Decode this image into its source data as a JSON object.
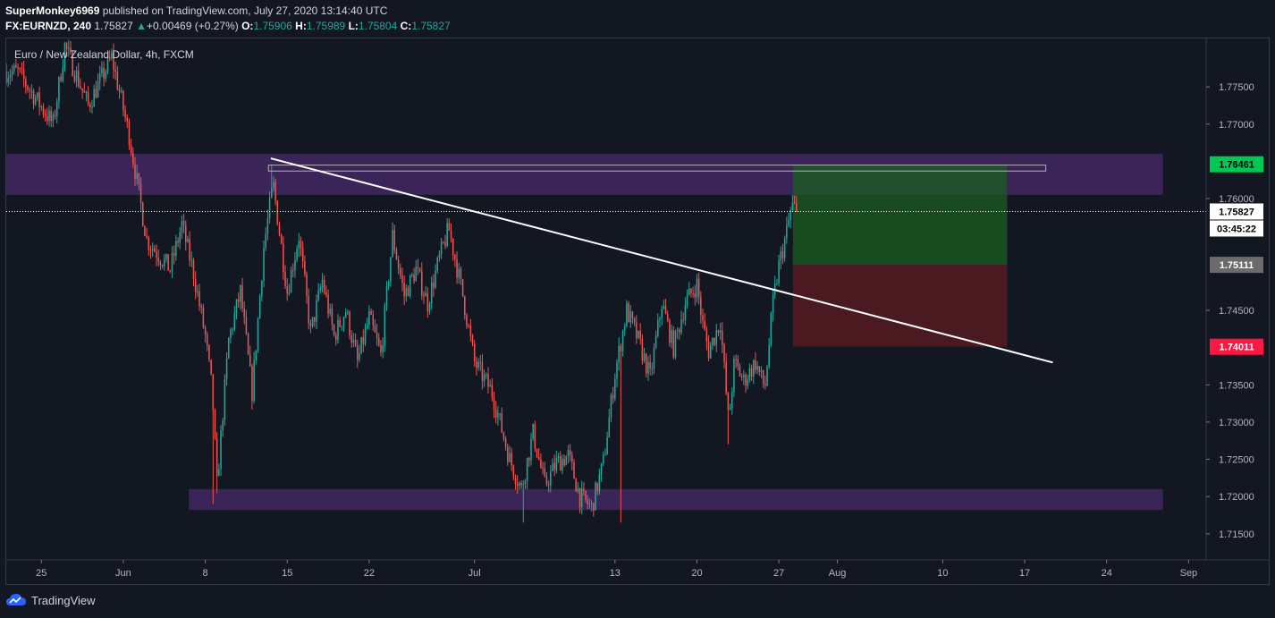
{
  "header": {
    "author": "SuperMonkey6969",
    "published_text": "published on TradingView.com, July 27, 2020 13:14:40 UTC",
    "symbol": "FX:EURNZD, 240",
    "last_price": "1.75827",
    "change_arrow": "▲",
    "change": "+0.00469 (+0.27%)",
    "o_label": "O:",
    "o_value": "1.75906",
    "h_label": "H:",
    "h_value": "1.75989",
    "l_label": "L:",
    "l_value": "1.75804",
    "c_label": "C:",
    "c_value": "1.75827"
  },
  "legend": {
    "title": "Euro / New Zealand Dollar, 4h, FXCM"
  },
  "branding": {
    "name": "TradingView"
  },
  "colors": {
    "background": "#131722",
    "up": "#26a69a",
    "down": "#ef5350",
    "zone": "#4a2a6b",
    "target_zone": "#1b5e20",
    "stop_zone": "#5a1a20",
    "trendline": "#ffffff",
    "tag_target": "#00c853",
    "tag_stop": "#ff1744",
    "tag_entry": "#6b6b6b"
  },
  "chart_data": {
    "type": "candlestick",
    "title": "Euro / New Zealand Dollar, 4h, FXCM",
    "y_ticks": [
      "1.77500",
      "1.77000",
      "1.76000",
      "1.74500",
      "1.73500",
      "1.73000",
      "1.72500",
      "1.72000",
      "1.71500"
    ],
    "y_tick_values": [
      1.775,
      1.77,
      1.76,
      1.745,
      1.735,
      1.73,
      1.725,
      1.72,
      1.715
    ],
    "ylim": [
      1.7115,
      1.7815
    ],
    "x_ticks": [
      "25",
      "Jun",
      "8",
      "15",
      "22",
      "Jul",
      "13",
      "20",
      "27",
      "Aug",
      "10",
      "17",
      "24",
      "Sep"
    ],
    "x_tick_days": [
      0,
      7,
      14,
      21,
      28,
      37,
      49,
      56,
      63,
      68,
      77,
      84,
      91,
      98
    ],
    "x_range_days": [
      -3,
      99.5
    ],
    "candles_per_day": 6,
    "price_path": [
      [
        -2,
        1.777
      ],
      [
        1,
        1.77
      ],
      [
        2,
        1.7805
      ],
      [
        4,
        1.7725
      ],
      [
        6,
        1.779
      ],
      [
        7.5,
        1.7685
      ],
      [
        9,
        1.7545
      ],
      [
        11,
        1.7505
      ],
      [
        12,
        1.7565
      ],
      [
        13,
        1.75
      ],
      [
        14,
        1.7415
      ],
      [
        14.6,
        1.734
      ],
      [
        15,
        1.7215
      ],
      [
        16,
        1.741
      ],
      [
        17,
        1.7475
      ],
      [
        18,
        1.734
      ],
      [
        19,
        1.7535
      ],
      [
        19.8,
        1.762
      ],
      [
        21,
        1.7475
      ],
      [
        22,
        1.755
      ],
      [
        23,
        1.742
      ],
      [
        24,
        1.749
      ],
      [
        25,
        1.7415
      ],
      [
        26,
        1.745
      ],
      [
        27,
        1.738
      ],
      [
        28,
        1.744
      ],
      [
        29,
        1.739
      ],
      [
        30,
        1.755
      ],
      [
        31,
        1.747
      ],
      [
        32,
        1.7505
      ],
      [
        33,
        1.746
      ],
      [
        34,
        1.752
      ],
      [
        34.8,
        1.756
      ],
      [
        36,
        1.747
      ],
      [
        37,
        1.738
      ],
      [
        38.5,
        1.734
      ],
      [
        40,
        1.725
      ],
      [
        41,
        1.721
      ],
      [
        42,
        1.7285
      ],
      [
        43,
        1.7215
      ],
      [
        44,
        1.7245
      ],
      [
        45,
        1.7255
      ],
      [
        46,
        1.72
      ],
      [
        47,
        1.7185
      ],
      [
        48,
        1.7245
      ],
      [
        49,
        1.7365
      ],
      [
        50,
        1.745
      ],
      [
        51,
        1.741
      ],
      [
        52,
        1.736
      ],
      [
        53,
        1.746
      ],
      [
        54,
        1.74
      ],
      [
        55,
        1.746
      ],
      [
        56,
        1.7485
      ],
      [
        56.5,
        1.743
      ],
      [
        57,
        1.7395
      ],
      [
        58,
        1.7435
      ],
      [
        58.7,
        1.73
      ],
      [
        59.2,
        1.738
      ],
      [
        60,
        1.7355
      ],
      [
        61,
        1.738
      ],
      [
        61.8,
        1.7345
      ],
      [
        62.5,
        1.746
      ],
      [
        63,
        1.751
      ],
      [
        63.6,
        1.755
      ],
      [
        64.1,
        1.759
      ],
      [
        64.6,
        1.7583
      ]
    ],
    "events": [
      {
        "day": 14.6,
        "price": 1.719
      },
      {
        "day": 15,
        "price": 1.7205
      },
      {
        "day": 19.6,
        "price": 1.7645
      },
      {
        "day": 49.5,
        "price": 1.7165
      },
      {
        "day": 41.2,
        "price": 1.7165
      },
      {
        "day": 58.6,
        "price": 1.727
      }
    ],
    "zones": [
      {
        "name": "resistance",
        "from_day": -3,
        "to_day": 95.8,
        "low": 1.7605,
        "high": 1.766
      },
      {
        "name": "support",
        "from_day": 12.6,
        "to_day": 95.8,
        "low": 1.7182,
        "high": 1.721
      }
    ],
    "reference_box": {
      "from_day": 19.4,
      "to_day": 85.8,
      "low": 1.7637,
      "high": 1.7645
    },
    "trendline": {
      "from_day": 19.6,
      "from_price": 1.7654,
      "to_day": 86.4,
      "to_price": 1.738
    },
    "position": {
      "from_day": 64.2,
      "to_day": 82.5,
      "target": 1.76461,
      "entry": 1.75111,
      "stop": 1.74011
    },
    "current_price": 1.75827,
    "price_tags": {
      "target": "1.76461",
      "current": "1.75827",
      "countdown": "03:45:22",
      "entry": "1.75111",
      "stop": "1.74011"
    }
  }
}
